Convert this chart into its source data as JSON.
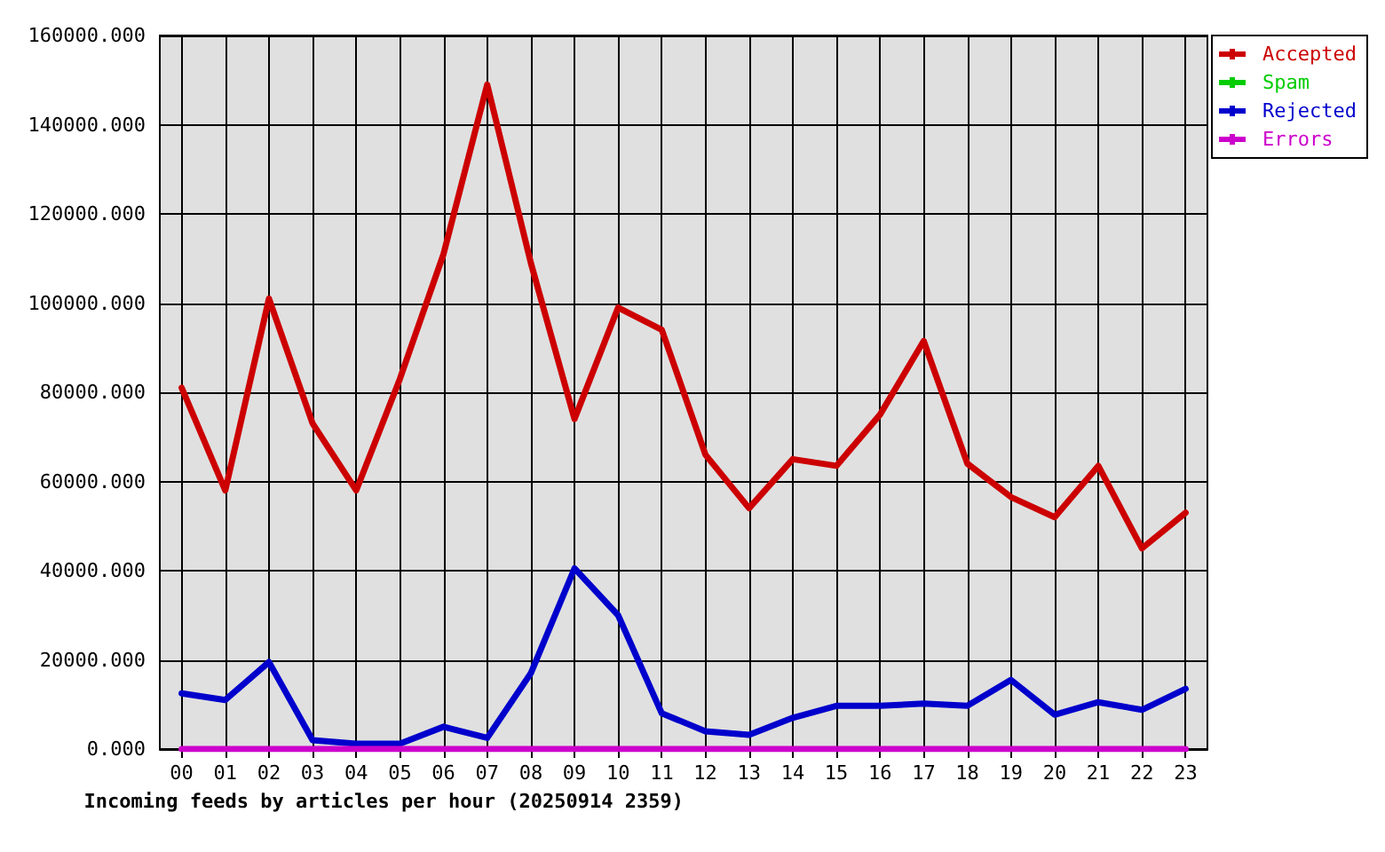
{
  "chart_data": {
    "type": "line",
    "xlabel": "Incoming feeds by articles per hour (20250914 2359)",
    "categories": [
      "00",
      "01",
      "02",
      "03",
      "04",
      "05",
      "06",
      "07",
      "08",
      "09",
      "10",
      "11",
      "12",
      "13",
      "14",
      "15",
      "16",
      "17",
      "18",
      "19",
      "20",
      "21",
      "22",
      "23"
    ],
    "series": [
      {
        "name": "Accepted",
        "color": "#cc0000",
        "values": [
          81000,
          58000,
          101000,
          73000,
          58000,
          83000,
          111000,
          149000,
          109000,
          74000,
          99000,
          94000,
          66000,
          54000,
          65000,
          63500,
          75000,
          91500,
          64000,
          56500,
          52000,
          63500,
          45000,
          53000
        ]
      },
      {
        "name": "Spam",
        "color": "#00cc00",
        "values": [
          null,
          null,
          null,
          null,
          null,
          null,
          null,
          null,
          null,
          null,
          null,
          null,
          null,
          null,
          null,
          null,
          null,
          null,
          null,
          null,
          null,
          null,
          null,
          null
        ]
      },
      {
        "name": "Rejected",
        "color": "#0000cc",
        "values": [
          12500,
          11000,
          19500,
          2000,
          1200,
          1200,
          5000,
          2500,
          17000,
          40500,
          30000,
          8000,
          4000,
          3200,
          7000,
          9700,
          9700,
          10200,
          9700,
          15500,
          7700,
          10500,
          8800,
          13500
        ]
      },
      {
        "name": "Errors",
        "color": "#cc00cc",
        "values": [
          0,
          0,
          0,
          0,
          0,
          0,
          0,
          0,
          0,
          0,
          0,
          0,
          0,
          0,
          0,
          0,
          0,
          0,
          0,
          0,
          0,
          0,
          0,
          0
        ]
      }
    ],
    "ylim": [
      0,
      160000
    ],
    "yticks": [
      {
        "value": 0,
        "label": "0.000"
      },
      {
        "value": 20000,
        "label": "20000.000"
      },
      {
        "value": 40000,
        "label": "40000.000"
      },
      {
        "value": 60000,
        "label": "60000.000"
      },
      {
        "value": 80000,
        "label": "80000.000"
      },
      {
        "value": 100000,
        "label": "100000.000"
      },
      {
        "value": 120000,
        "label": "120000.000"
      },
      {
        "value": 140000,
        "label": "140000.000"
      },
      {
        "value": 160000,
        "label": "160000.000"
      }
    ],
    "grid": true,
    "legend": "top right",
    "marker": "none",
    "line_style": "solid"
  }
}
